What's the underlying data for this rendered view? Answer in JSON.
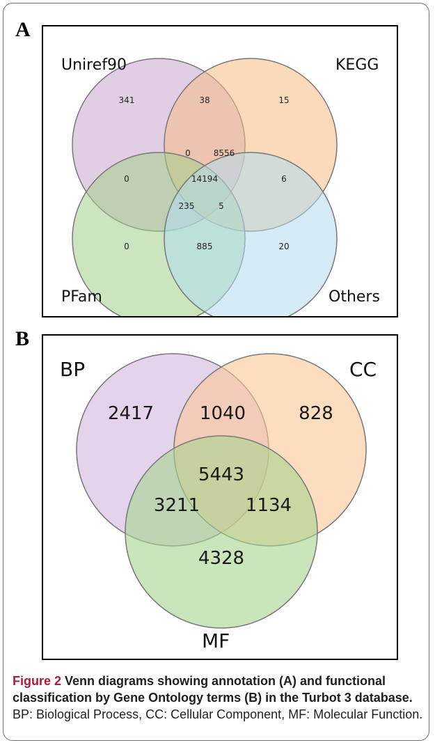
{
  "panel_a": {
    "letter": "A",
    "sets": [
      "Uniref90",
      "KEGG",
      "PFam",
      "Others"
    ],
    "regions": {
      "uniref_only": "341",
      "uniref_kegg": "38",
      "kegg_only": "15",
      "uniref_kegg_pfam": "0",
      "uniref_kegg_others": "8556",
      "uniref_pfam": "0",
      "all_four": "14194",
      "kegg_others": "6",
      "uniref_pfam_others": "235",
      "kegg_pfam_others": "5",
      "pfam_only": "0",
      "pfam_others": "885",
      "others_only": "20"
    },
    "colors": {
      "uniref": "#c9a6cf",
      "kegg": "#f8bb85",
      "pfam": "#a3cf8b",
      "others": "#b3dcf1"
    }
  },
  "panel_b": {
    "letter": "B",
    "sets": [
      "BP",
      "CC",
      "MF"
    ],
    "regions": {
      "bp_only": "2417",
      "bp_cc": "1040",
      "cc_only": "828",
      "all_three": "5443",
      "bp_mf": "3211",
      "cc_mf": "1134",
      "mf_only": "4328"
    },
    "colors": {
      "bp": "#d6bde0",
      "cc": "#fbc796",
      "mf": "#a7d48e"
    }
  },
  "caption": {
    "bold_lead": "Figure 2",
    "bold_text": " Venn diagrams showing annotation (A) and functional classification by Gene Ontology terms (B) in the Turbot 3 database.",
    "rest": " BP: Biological Process, CC: Cellular Component, MF: Molecular Function."
  }
}
